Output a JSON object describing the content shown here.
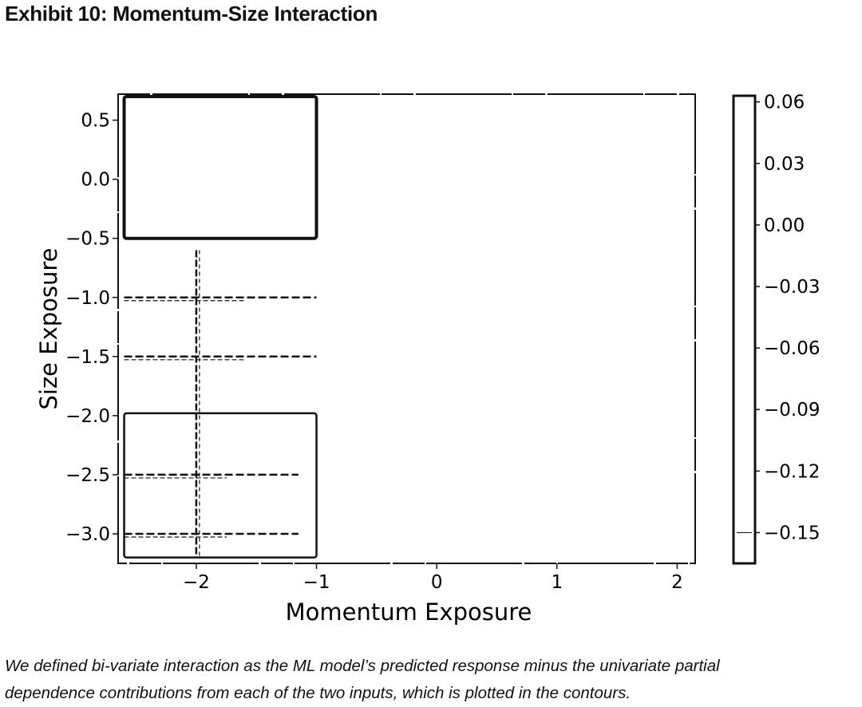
{
  "page": {
    "exhibit_title": "Exhibit 10: Momentum-Size Interaction",
    "caption_line1": "We defined bi-variate interaction as the ML model’s predicted response minus the univariate partial",
    "caption_line2": "dependence contributions from each of the two inputs, which is plotted in the contours."
  },
  "chart_data": {
    "type": "contour",
    "title": "",
    "xlabel": "Momentum Exposure",
    "ylabel": "Size Exposure",
    "xlim": [
      -2.65,
      2.15
    ],
    "ylim": [
      -3.25,
      0.72
    ],
    "x_ticks": [
      -2,
      -1,
      0,
      1,
      2
    ],
    "x_tick_labels": [
      "−2",
      "−1",
      "0",
      "1",
      "2"
    ],
    "y_ticks": [
      0.5,
      0.0,
      -0.5,
      -1.0,
      -1.5,
      -2.0,
      -2.5,
      -3.0
    ],
    "y_tick_labels": [
      "0.5",
      "0.0",
      "−0.5",
      "−1.0",
      "−1.5",
      "−2.0",
      "−2.5",
      "−3.0"
    ],
    "colorbar": {
      "ticks": [
        0.06,
        0.03,
        0.0,
        -0.03,
        -0.06,
        -0.09,
        -0.12,
        -0.15
      ],
      "tick_labels": [
        "0.06",
        "0.03",
        "0.00",
        "−0.03",
        "−0.06",
        "−0.09",
        "−0.12",
        "−0.15"
      ],
      "range": [
        -0.165,
        0.063
      ]
    },
    "regions": [
      {
        "name": "upper-left-block",
        "x": [
          -2.6,
          -1.0
        ],
        "y": [
          -0.5,
          0.7
        ],
        "weight": "heavy"
      },
      {
        "name": "lower-left-block",
        "x": [
          -2.6,
          -1.0
        ],
        "y": [
          -3.2,
          -1.98
        ],
        "weight": "medium"
      }
    ],
    "dashed_contours": [
      {
        "orientation": "horizontal",
        "y": -1.0,
        "x": [
          -2.6,
          -1.0
        ]
      },
      {
        "orientation": "horizontal",
        "y": -1.5,
        "x": [
          -2.6,
          -1.0
        ]
      },
      {
        "orientation": "horizontal",
        "y": -2.5,
        "x": [
          -2.6,
          -1.15
        ]
      },
      {
        "orientation": "horizontal",
        "y": -3.0,
        "x": [
          -2.6,
          -1.15
        ]
      },
      {
        "orientation": "vertical",
        "x": -2.0,
        "y": [
          -3.2,
          -0.6
        ]
      }
    ],
    "grid": false,
    "legend": "colorbar-right"
  }
}
